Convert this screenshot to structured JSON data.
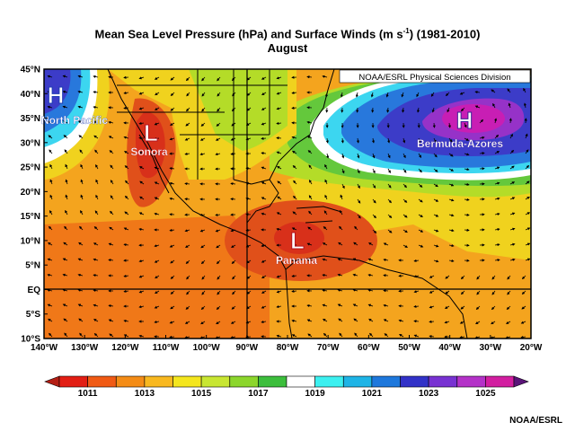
{
  "title": {
    "line1_main": "Mean Sea Level Pressure (hPa) and Surface Winds (m s",
    "line1_exp": "-1",
    "line1_tail": ") (1981-2010)",
    "line2": "August"
  },
  "source_box": "NOAA/ESRL Physical Sciences Division",
  "credit": "NOAA/ESRL",
  "lat_labels": [
    "45°N",
    "40°N",
    "35°N",
    "30°N",
    "25°N",
    "20°N",
    "15°N",
    "10°N",
    "5°N",
    "EQ",
    "5°S",
    "10°S"
  ],
  "lon_labels": [
    "140°W",
    "130°W",
    "120°W",
    "110°W",
    "100°W",
    "90°W",
    "80°W",
    "70°W",
    "60°W",
    "50°W",
    "40°W",
    "30°W",
    "20°W"
  ],
  "systems": [
    {
      "letter": "H",
      "name": "North Pacific"
    },
    {
      "letter": "L",
      "name": "Sonora"
    },
    {
      "letter": "L",
      "name": "Panama"
    },
    {
      "letter": "H",
      "name": "Bermuda-Azores"
    }
  ],
  "colorbar": {
    "labels": [
      "1011",
      "1013",
      "1015",
      "1017",
      "1019",
      "1021",
      "1023",
      "1025"
    ],
    "colors": [
      "#e21e14",
      "#f05a14",
      "#f48c16",
      "#f8b820",
      "#f4e61e",
      "#c8e632",
      "#8cd62c",
      "#3cbe3c",
      "#ffffff",
      "#3cf0f0",
      "#1eb4e6",
      "#1e78dc",
      "#3232c8",
      "#7832d2",
      "#b432c8",
      "#d21ea0"
    ]
  },
  "map_colors": {
    "ocean_warm": "#f4a41e",
    "orange": "#f07818",
    "deep_orange": "#e0501a",
    "red": "#d8301a",
    "yellow": "#f0d21e",
    "green_yellow": "#b4dc28",
    "green": "#64c83c",
    "white": "#ffffff",
    "cyan": "#3cd6f0",
    "blue": "#2878dc",
    "indigo": "#3c3cc8",
    "purple": "#9632c8",
    "magenta": "#c81eb4"
  }
}
